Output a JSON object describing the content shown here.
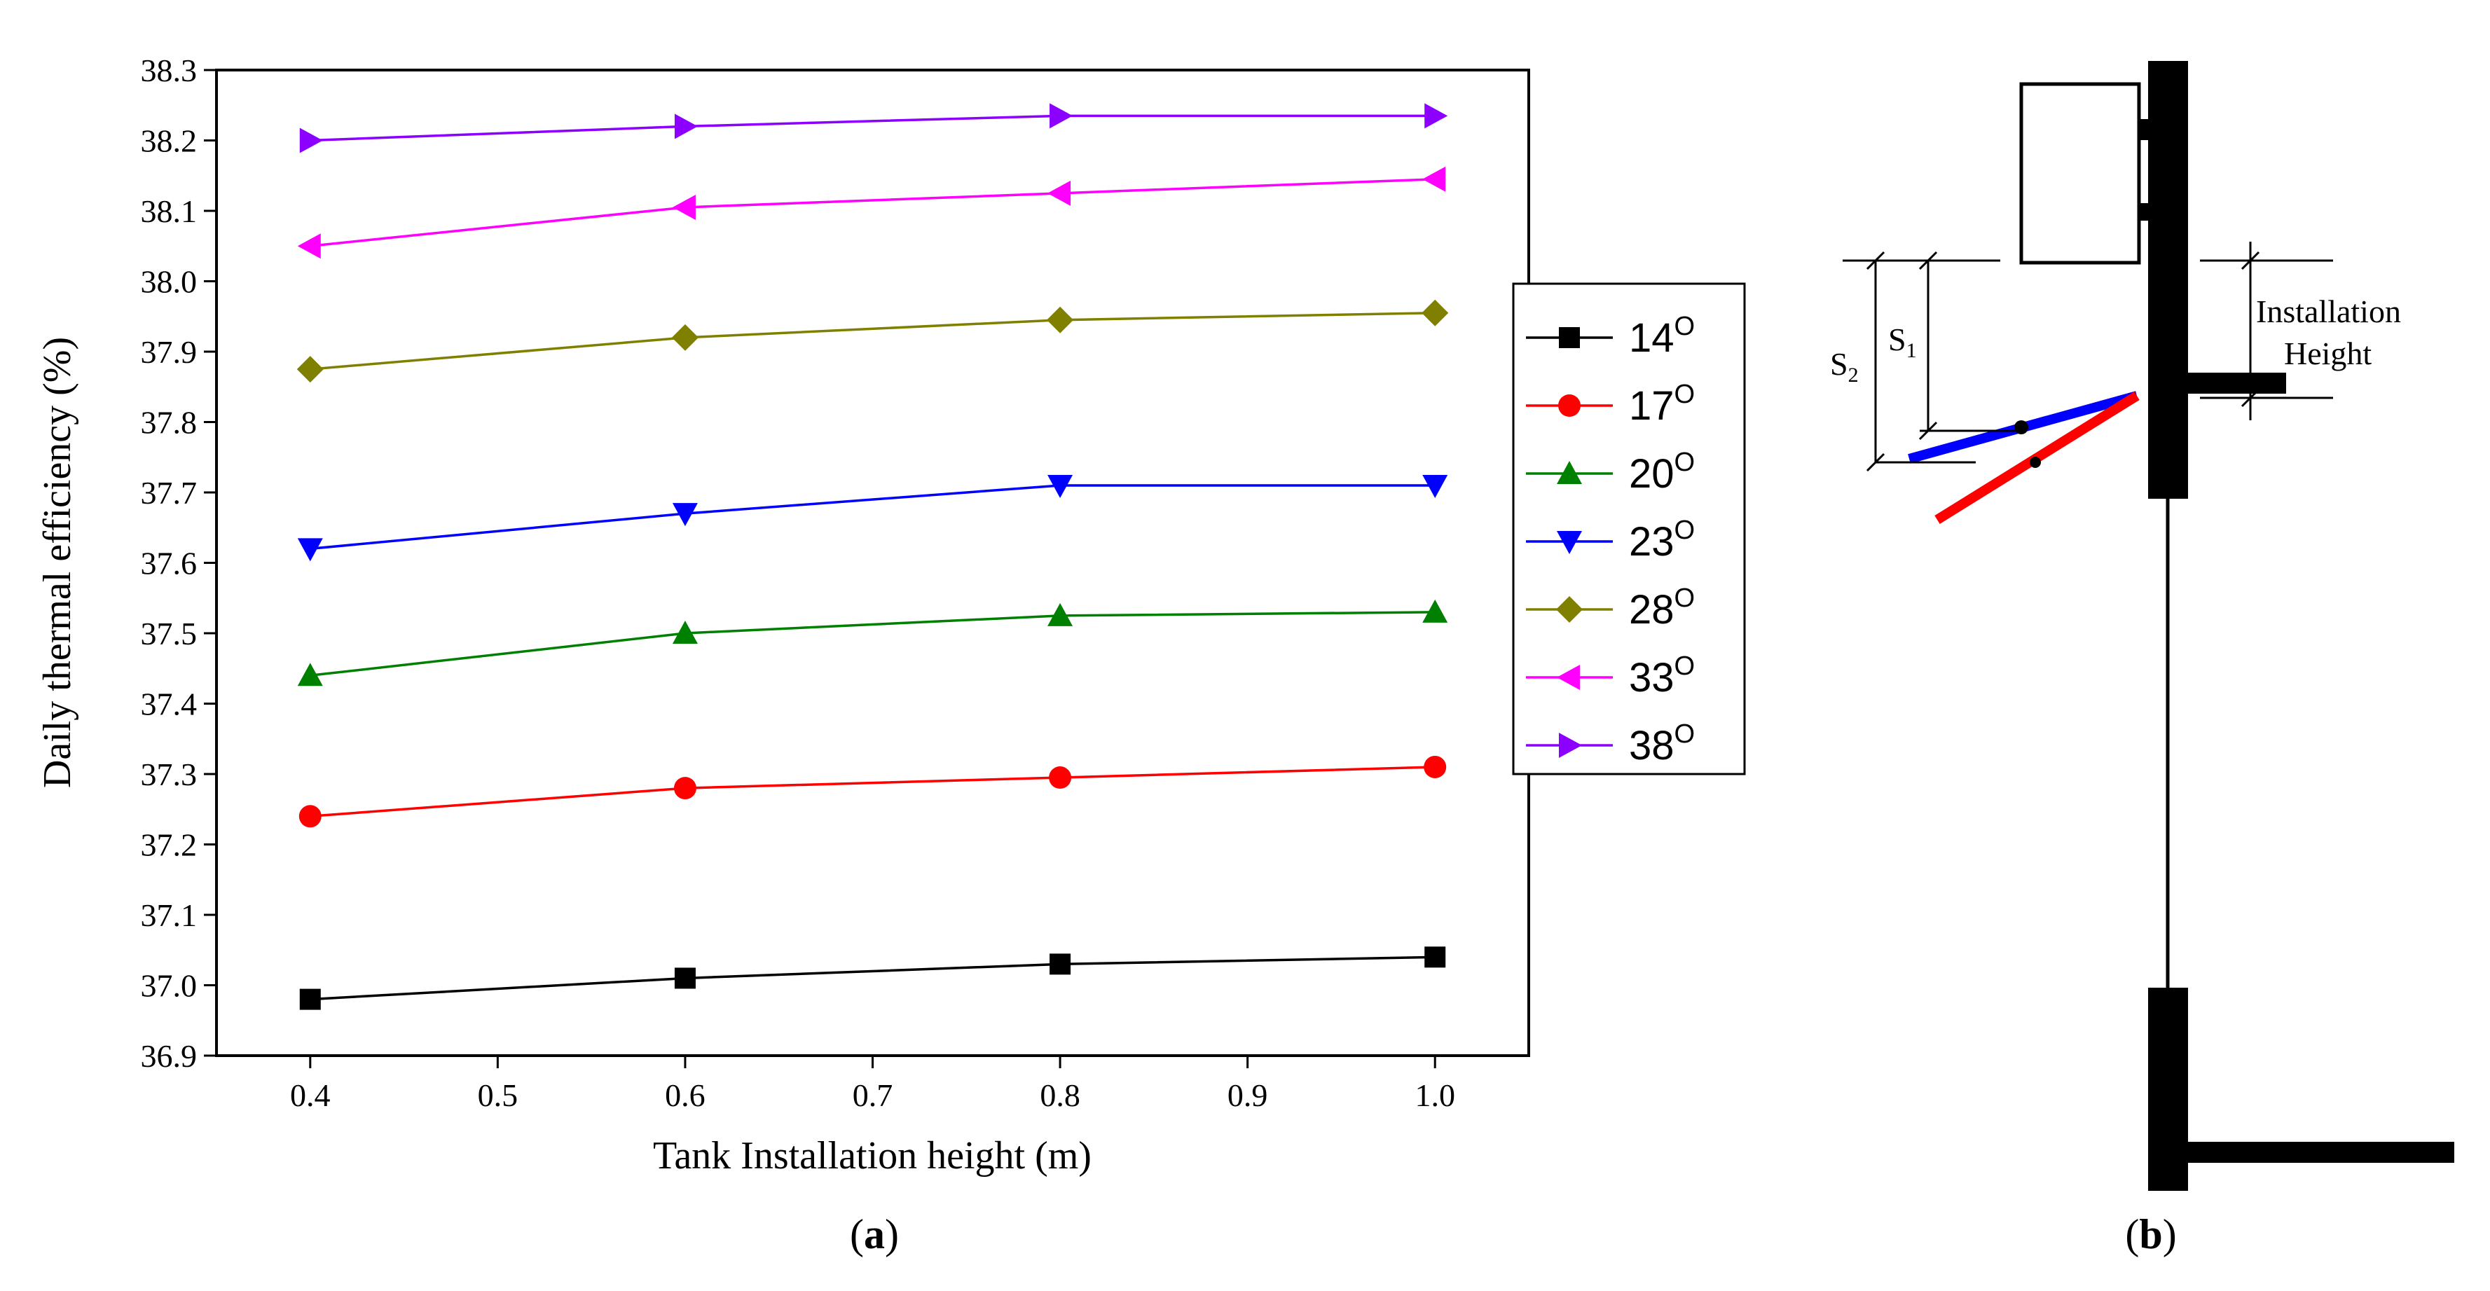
{
  "chart_data": {
    "type": "line",
    "title": "",
    "xlabel": "Tank Installation height (m)",
    "ylabel": "Daily thermal efficiency (%)",
    "xlim": [
      0.35,
      1.05
    ],
    "ylim": [
      36.9,
      38.3
    ],
    "xticks": [
      "0.4",
      "0.5",
      "0.6",
      "0.7",
      "0.8",
      "0.9",
      "1.0"
    ],
    "yticks": [
      "36.9",
      "37.0",
      "37.1",
      "37.2",
      "37.3",
      "37.4",
      "37.5",
      "37.6",
      "37.7",
      "37.8",
      "37.9",
      "38.0",
      "38.1",
      "38.2",
      "38.3"
    ],
    "x": [
      0.4,
      0.6,
      0.8,
      1.0
    ],
    "legend_position": "right",
    "series": [
      {
        "name": "14",
        "sup": "O",
        "color": "#000000",
        "marker": "square",
        "values": [
          36.98,
          37.01,
          37.03,
          37.04
        ]
      },
      {
        "name": "17",
        "sup": "O",
        "color": "#ff0000",
        "marker": "circle",
        "values": [
          37.24,
          37.28,
          37.295,
          37.31
        ]
      },
      {
        "name": "20",
        "sup": "O",
        "color": "#008000",
        "marker": "triangle-up",
        "values": [
          37.44,
          37.5,
          37.525,
          37.53
        ]
      },
      {
        "name": "23",
        "sup": "O",
        "color": "#0000ff",
        "marker": "triangle-down",
        "values": [
          37.62,
          37.67,
          37.71,
          37.71
        ]
      },
      {
        "name": "28",
        "sup": "O",
        "color": "#808000",
        "marker": "diamond",
        "values": [
          37.875,
          37.92,
          37.945,
          37.955
        ]
      },
      {
        "name": "33",
        "sup": "O",
        "color": "#ff00ff",
        "marker": "triangle-left",
        "values": [
          38.05,
          38.105,
          38.125,
          38.145
        ]
      },
      {
        "name": "38",
        "sup": "O",
        "color": "#8b00ff",
        "marker": "triangle-right",
        "values": [
          38.2,
          38.22,
          38.235,
          38.235
        ]
      }
    ]
  },
  "captions": {
    "a_open": "(",
    "a_letter": "a",
    "a_close": ")",
    "b_open": "(",
    "b_letter": "b",
    "b_close": ")"
  },
  "diagram": {
    "installation_label_line1": "Installation",
    "installation_label_line2": "Height",
    "s1_letter": "S",
    "s1_sub": "1",
    "s2_letter": "S",
    "s2_sub": "2",
    "colors": {
      "collector_s1": "#0000ff",
      "collector_s2": "#ff0000",
      "structure": "#000000"
    }
  }
}
